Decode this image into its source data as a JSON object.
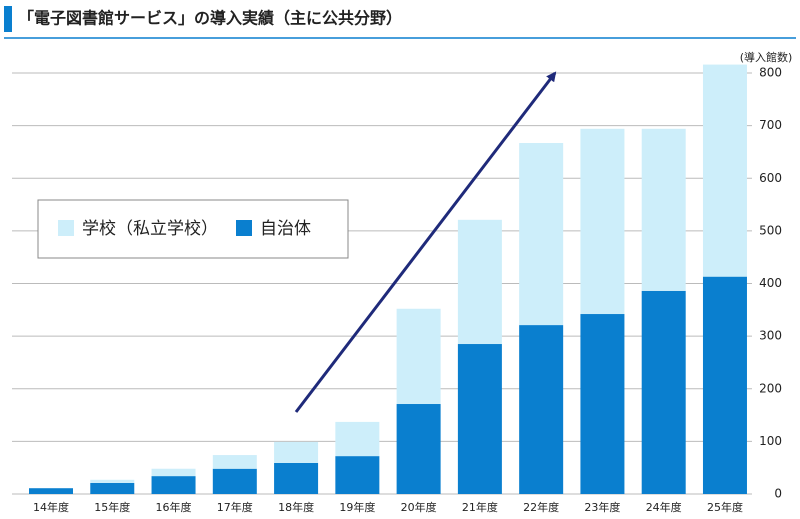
{
  "chart_data": {
    "type": "stacked_bar",
    "title": "「電子図書館サービス」の導入実績（主に公共分野）",
    "y_label": "(導入館数)",
    "categories": [
      "14年度",
      "15年度",
      "16年度",
      "17年度",
      "18年度",
      "19年度",
      "20年度",
      "21年度",
      "22年度",
      "23年度",
      "24年度",
      "25年度"
    ],
    "series": [
      {
        "name": "学校（私立学校）",
        "color": "#cdeefa",
        "values": [
          0,
          6,
          14,
          26,
          40,
          65,
          181,
          236,
          346,
          352,
          308,
          403
        ]
      },
      {
        "name": "自治体",
        "color": "#0a7fcf",
        "values": [
          11,
          21,
          34,
          48,
          59,
          72,
          171,
          285,
          321,
          342,
          386,
          413
        ]
      }
    ],
    "ylim": [
      0,
      800
    ],
    "yticks": [
      0,
      100,
      200,
      300,
      400,
      500,
      600,
      700,
      800
    ],
    "grid": true
  }
}
